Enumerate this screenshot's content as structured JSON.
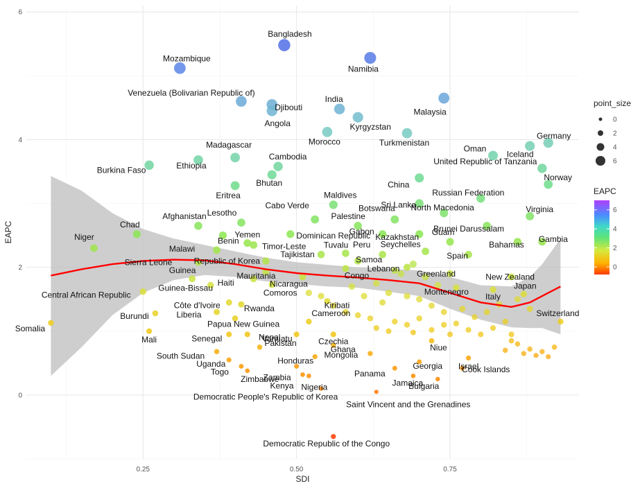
{
  "chart_data": {
    "type": "scatter",
    "xlabel": "SDI",
    "ylabel": "EAPC",
    "xlim": [
      0.06,
      0.96
    ],
    "ylim": [
      -1.0,
      6.1
    ],
    "x_ticks": [
      0.25,
      0.5,
      0.75
    ],
    "x_tick_labels": [
      "0.25",
      "0.50",
      "0.75"
    ],
    "y_ticks": [
      0,
      2,
      4,
      6
    ],
    "y_tick_labels": [
      "0",
      "2",
      "4",
      "6"
    ],
    "grid": true,
    "legend_position": "right",
    "size_legend": {
      "title": "point_size",
      "labels": [
        "0",
        "2",
        "4",
        "6"
      ],
      "values": [
        0,
        2,
        4,
        6
      ]
    },
    "color_legend": {
      "title": "EAPC",
      "labels": [
        "6",
        "4",
        "2",
        "0"
      ],
      "values": [
        6,
        4,
        2,
        0
      ]
    },
    "colors": {
      "smooth_line": "#ff0000",
      "confidence_band": "#bdbdbd",
      "colorscale": [
        "#ff4500",
        "#ffd700",
        "#7cfc00",
        "#40e0d0",
        "#4169e1",
        "#9932cc"
      ]
    },
    "points": [
      {
        "label": "Somalia",
        "x": 0.1,
        "y": 1.13
      },
      {
        "label": "Niger",
        "x": 0.17,
        "y": 2.3
      },
      {
        "label": "Chad",
        "x": 0.24,
        "y": 2.52
      },
      {
        "label": "Burkina Faso",
        "x": 0.26,
        "y": 3.6
      },
      {
        "label": "Central African Republic",
        "x": 0.25,
        "y": 1.62
      },
      {
        "label": "Burundi",
        "x": 0.27,
        "y": 1.28
      },
      {
        "label": "Mali",
        "x": 0.26,
        "y": 1.0
      },
      {
        "label": "Mozambique",
        "x": 0.31,
        "y": 5.12
      },
      {
        "label": "Ethiopia",
        "x": 0.34,
        "y": 3.68
      },
      {
        "label": "Afghanistan",
        "x": 0.34,
        "y": 2.65
      },
      {
        "label": "Malawi",
        "x": 0.37,
        "y": 2.27
      },
      {
        "label": "Sierra Leone",
        "x": 0.34,
        "y": 2.08
      },
      {
        "label": "Guinea",
        "x": 0.33,
        "y": 1.82
      },
      {
        "label": "Guinea-Bissau",
        "x": 0.36,
        "y": 1.72
      },
      {
        "label": "Benin",
        "x": 0.38,
        "y": 2.5
      },
      {
        "label": "Madagascar",
        "x": 0.4,
        "y": 3.72
      },
      {
        "label": "Eritrea",
        "x": 0.4,
        "y": 3.28
      },
      {
        "label": "Côte d'Ivoire",
        "x": 0.39,
        "y": 1.45
      },
      {
        "label": "Liberia",
        "x": 0.37,
        "y": 1.3
      },
      {
        "label": "Senegal",
        "x": 0.39,
        "y": 0.95
      },
      {
        "label": "South Sudan",
        "x": 0.37,
        "y": 0.68
      },
      {
        "label": "Uganda",
        "x": 0.39,
        "y": 0.55
      },
      {
        "label": "Togo",
        "x": 0.41,
        "y": 0.45
      },
      {
        "label": "Venezuela (Bolivarian Republic of)",
        "x": 0.41,
        "y": 4.6
      },
      {
        "label": "Bangladesh",
        "x": 0.48,
        "y": 5.48
      },
      {
        "label": "Djibouti",
        "x": 0.46,
        "y": 4.55
      },
      {
        "label": "Angola",
        "x": 0.46,
        "y": 4.45
      },
      {
        "label": "Cambodia",
        "x": 0.47,
        "y": 3.58
      },
      {
        "label": "Bhutan",
        "x": 0.46,
        "y": 3.45
      },
      {
        "label": "Lesotho",
        "x": 0.41,
        "y": 2.7
      },
      {
        "label": "Yemen",
        "x": 0.42,
        "y": 2.38
      },
      {
        "label": "Timor-Leste",
        "x": 0.43,
        "y": 2.35
      },
      {
        "label": "Republic of Korea",
        "x": 0.45,
        "y": 2.1
      },
      {
        "label": "Mauritania",
        "x": 0.45,
        "y": 1.93
      },
      {
        "label": "Haiti",
        "x": 0.43,
        "y": 1.82
      },
      {
        "label": "Comoros",
        "x": 0.46,
        "y": 1.73
      },
      {
        "label": "Rwanda",
        "x": 0.41,
        "y": 1.42
      },
      {
        "label": "Papua New Guinea",
        "x": 0.4,
        "y": 1.2
      },
      {
        "label": "Nepal",
        "x": 0.42,
        "y": 0.95
      },
      {
        "label": "Pakistan",
        "x": 0.44,
        "y": 0.75
      },
      {
        "label": "Zimbabwe",
        "x": 0.42,
        "y": 0.38
      },
      {
        "label": "Dominican Republic",
        "x": 0.49,
        "y": 2.52
      },
      {
        "label": "Cabo Verde",
        "x": 0.53,
        "y": 2.75
      },
      {
        "label": "Morocco",
        "x": 0.55,
        "y": 4.12
      },
      {
        "label": "India",
        "x": 0.57,
        "y": 4.48
      },
      {
        "label": "Kyrgyzstan",
        "x": 0.6,
        "y": 4.35
      },
      {
        "label": "Namibia",
        "x": 0.62,
        "y": 5.28
      },
      {
        "label": "Maldives",
        "x": 0.56,
        "y": 2.98
      },
      {
        "label": "Palestine",
        "x": 0.6,
        "y": 2.65
      },
      {
        "label": "Tajikistan",
        "x": 0.54,
        "y": 2.2
      },
      {
        "label": "Tuvalu",
        "x": 0.58,
        "y": 2.22
      },
      {
        "label": "Samoa",
        "x": 0.6,
        "y": 2.1
      },
      {
        "label": "Congo",
        "x": 0.58,
        "y": 1.98
      },
      {
        "label": "Nicaragua",
        "x": 0.51,
        "y": 1.85
      },
      {
        "label": "Kiribati",
        "x": 0.55,
        "y": 1.47
      },
      {
        "label": "Cameroon",
        "x": 0.52,
        "y": 1.15
      },
      {
        "label": "Czechia",
        "x": 0.56,
        "y": 0.95
      },
      {
        "label": "Vanuatu",
        "x": 0.5,
        "y": 0.95
      },
      {
        "label": "Ghana",
        "x": 0.56,
        "y": 0.78
      },
      {
        "label": "Honduras",
        "x": 0.53,
        "y": 0.6
      },
      {
        "label": "Zambia",
        "x": 0.5,
        "y": 0.45
      },
      {
        "label": "Kenya",
        "x": 0.51,
        "y": 0.32
      },
      {
        "label": "Nigeria",
        "x": 0.52,
        "y": 0.3
      },
      {
        "label": "Democratic People's Republic of Korea",
        "x": 0.54,
        "y": 0.1
      },
      {
        "label": "Botswana",
        "x": 0.66,
        "y": 2.75
      },
      {
        "label": "Gabon",
        "x": 0.64,
        "y": 2.52
      },
      {
        "label": "Peru",
        "x": 0.64,
        "y": 2.2
      },
      {
        "label": "Lebanon",
        "x": 0.68,
        "y": 2.0
      },
      {
        "label": "Mongolia",
        "x": 0.62,
        "y": 0.65
      },
      {
        "label": "Panama",
        "x": 0.66,
        "y": 0.42
      },
      {
        "label": "Jamaica",
        "x": 0.69,
        "y": 0.3
      },
      {
        "label": "Saint Vincent and the Grenadines",
        "x": 0.63,
        "y": 0.05
      },
      {
        "label": "Turkmenistan",
        "x": 0.68,
        "y": 4.1
      },
      {
        "label": "Malaysia",
        "x": 0.74,
        "y": 4.65
      },
      {
        "label": "China",
        "x": 0.7,
        "y": 3.4
      },
      {
        "label": "Sri Lanka",
        "x": 0.7,
        "y": 3.0
      },
      {
        "label": "Kazakhstan",
        "x": 0.7,
        "y": 2.52
      },
      {
        "label": "Seychelles",
        "x": 0.71,
        "y": 2.25
      },
      {
        "label": "North Macedonia",
        "x": 0.74,
        "y": 2.85
      },
      {
        "label": "Russian Federation",
        "x": 0.8,
        "y": 3.08
      },
      {
        "label": "Brunei Darussalam",
        "x": 0.81,
        "y": 2.65
      },
      {
        "label": "Guam",
        "x": 0.75,
        "y": 2.4
      },
      {
        "label": "Spain",
        "x": 0.78,
        "y": 2.2
      },
      {
        "label": "Greenland",
        "x": 0.75,
        "y": 1.9
      },
      {
        "label": "Montenegro",
        "x": 0.76,
        "y": 1.68
      },
      {
        "label": "Niue",
        "x": 0.72,
        "y": 0.85
      },
      {
        "label": "Georgia",
        "x": 0.7,
        "y": 0.52
      },
      {
        "label": "Bulgaria",
        "x": 0.73,
        "y": 0.25
      },
      {
        "label": "Israel",
        "x": 0.78,
        "y": 0.58
      },
      {
        "label": "Cook Islands",
        "x": 0.77,
        "y": 0.42
      },
      {
        "label": "Oman",
        "x": 0.82,
        "y": 3.75
      },
      {
        "label": "United Republic of Tanzania",
        "x": 0.9,
        "y": 3.55
      },
      {
        "label": "Iceland",
        "x": 0.88,
        "y": 3.9
      },
      {
        "label": "Germany",
        "x": 0.91,
        "y": 3.95
      },
      {
        "label": "Norway",
        "x": 0.91,
        "y": 3.3
      },
      {
        "label": "Virginia",
        "x": 0.88,
        "y": 2.8
      },
      {
        "label": "Gambia",
        "x": 0.9,
        "y": 2.4
      },
      {
        "label": "Bahamas",
        "x": 0.86,
        "y": 2.4
      },
      {
        "label": "New Zealand",
        "x": 0.85,
        "y": 1.85
      },
      {
        "label": "Italy",
        "x": 0.82,
        "y": 1.65
      },
      {
        "label": "Japan",
        "x": 0.87,
        "y": 1.58
      },
      {
        "label": "Switzerland",
        "x": 0.93,
        "y": 1.15
      },
      {
        "label": "Democratic Republic of the Congo",
        "x": 0.56,
        "y": -0.65
      }
    ],
    "smooth_line": {
      "x": [
        0.1,
        0.15,
        0.2,
        0.25,
        0.3,
        0.35,
        0.4,
        0.45,
        0.5,
        0.55,
        0.6,
        0.65,
        0.7,
        0.75,
        0.8,
        0.85,
        0.88,
        0.9,
        0.93
      ],
      "y": [
        1.87,
        1.97,
        2.05,
        2.1,
        2.12,
        2.11,
        2.05,
        1.97,
        1.91,
        1.87,
        1.84,
        1.8,
        1.75,
        1.6,
        1.45,
        1.38,
        1.45,
        1.55,
        1.7
      ]
    },
    "confidence_band": {
      "x": [
        0.1,
        0.15,
        0.2,
        0.25,
        0.3,
        0.35,
        0.4,
        0.45,
        0.5,
        0.55,
        0.6,
        0.65,
        0.7,
        0.75,
        0.8,
        0.85,
        0.88,
        0.9,
        0.93
      ],
      "upper": [
        3.43,
        3.2,
        2.85,
        2.6,
        2.45,
        2.35,
        2.25,
        2.15,
        2.08,
        2.04,
        2.0,
        1.98,
        1.95,
        1.85,
        1.72,
        1.7,
        1.85,
        2.05,
        2.45
      ],
      "lower": [
        0.3,
        0.75,
        1.25,
        1.6,
        1.8,
        1.88,
        1.85,
        1.78,
        1.74,
        1.7,
        1.68,
        1.62,
        1.55,
        1.35,
        1.18,
        1.06,
        1.05,
        1.05,
        0.95
      ]
    },
    "unlabeled_points": [
      {
        "x": 0.52,
        "y": 1.6
      },
      {
        "x": 0.54,
        "y": 1.55
      },
      {
        "x": 0.56,
        "y": 1.4
      },
      {
        "x": 0.58,
        "y": 1.3
      },
      {
        "x": 0.6,
        "y": 1.25
      },
      {
        "x": 0.62,
        "y": 1.2
      },
      {
        "x": 0.63,
        "y": 1.05
      },
      {
        "x": 0.65,
        "y": 1.0
      },
      {
        "x": 0.66,
        "y": 1.15
      },
      {
        "x": 0.68,
        "y": 1.1
      },
      {
        "x": 0.69,
        "y": 0.98
      },
      {
        "x": 0.7,
        "y": 1.2
      },
      {
        "x": 0.72,
        "y": 1.02
      },
      {
        "x": 0.74,
        "y": 1.1
      },
      {
        "x": 0.76,
        "y": 1.12
      },
      {
        "x": 0.78,
        "y": 1.02
      },
      {
        "x": 0.8,
        "y": 0.95
      },
      {
        "x": 0.81,
        "y": 1.3
      },
      {
        "x": 0.82,
        "y": 1.05
      },
      {
        "x": 0.84,
        "y": 1.15
      },
      {
        "x": 0.85,
        "y": 0.95
      },
      {
        "x": 0.86,
        "y": 0.8
      },
      {
        "x": 0.87,
        "y": 0.65
      },
      {
        "x": 0.88,
        "y": 0.72
      },
      {
        "x": 0.89,
        "y": 0.62
      },
      {
        "x": 0.9,
        "y": 0.68
      },
      {
        "x": 0.91,
        "y": 0.6
      },
      {
        "x": 0.92,
        "y": 0.75
      },
      {
        "x": 0.84,
        "y": 0.7
      },
      {
        "x": 0.85,
        "y": 0.85
      },
      {
        "x": 0.67,
        "y": 1.9
      },
      {
        "x": 0.69,
        "y": 2.05
      },
      {
        "x": 0.66,
        "y": 1.95
      },
      {
        "x": 0.71,
        "y": 1.85
      },
      {
        "x": 0.73,
        "y": 1.72
      },
      {
        "x": 0.77,
        "y": 1.35
      },
      {
        "x": 0.79,
        "y": 1.22
      },
      {
        "x": 0.83,
        "y": 1.42
      },
      {
        "x": 0.86,
        "y": 1.5
      },
      {
        "x": 0.88,
        "y": 1.35
      },
      {
        "x": 0.64,
        "y": 1.45
      },
      {
        "x": 0.61,
        "y": 1.55
      },
      {
        "x": 0.59,
        "y": 1.7
      },
      {
        "x": 0.63,
        "y": 1.75
      },
      {
        "x": 0.65,
        "y": 1.6
      },
      {
        "x": 0.68,
        "y": 1.55
      },
      {
        "x": 0.7,
        "y": 1.5
      },
      {
        "x": 0.72,
        "y": 1.4
      },
      {
        "x": 0.74,
        "y": 1.3
      },
      {
        "x": 0.75,
        "y": 0.95
      }
    ]
  }
}
